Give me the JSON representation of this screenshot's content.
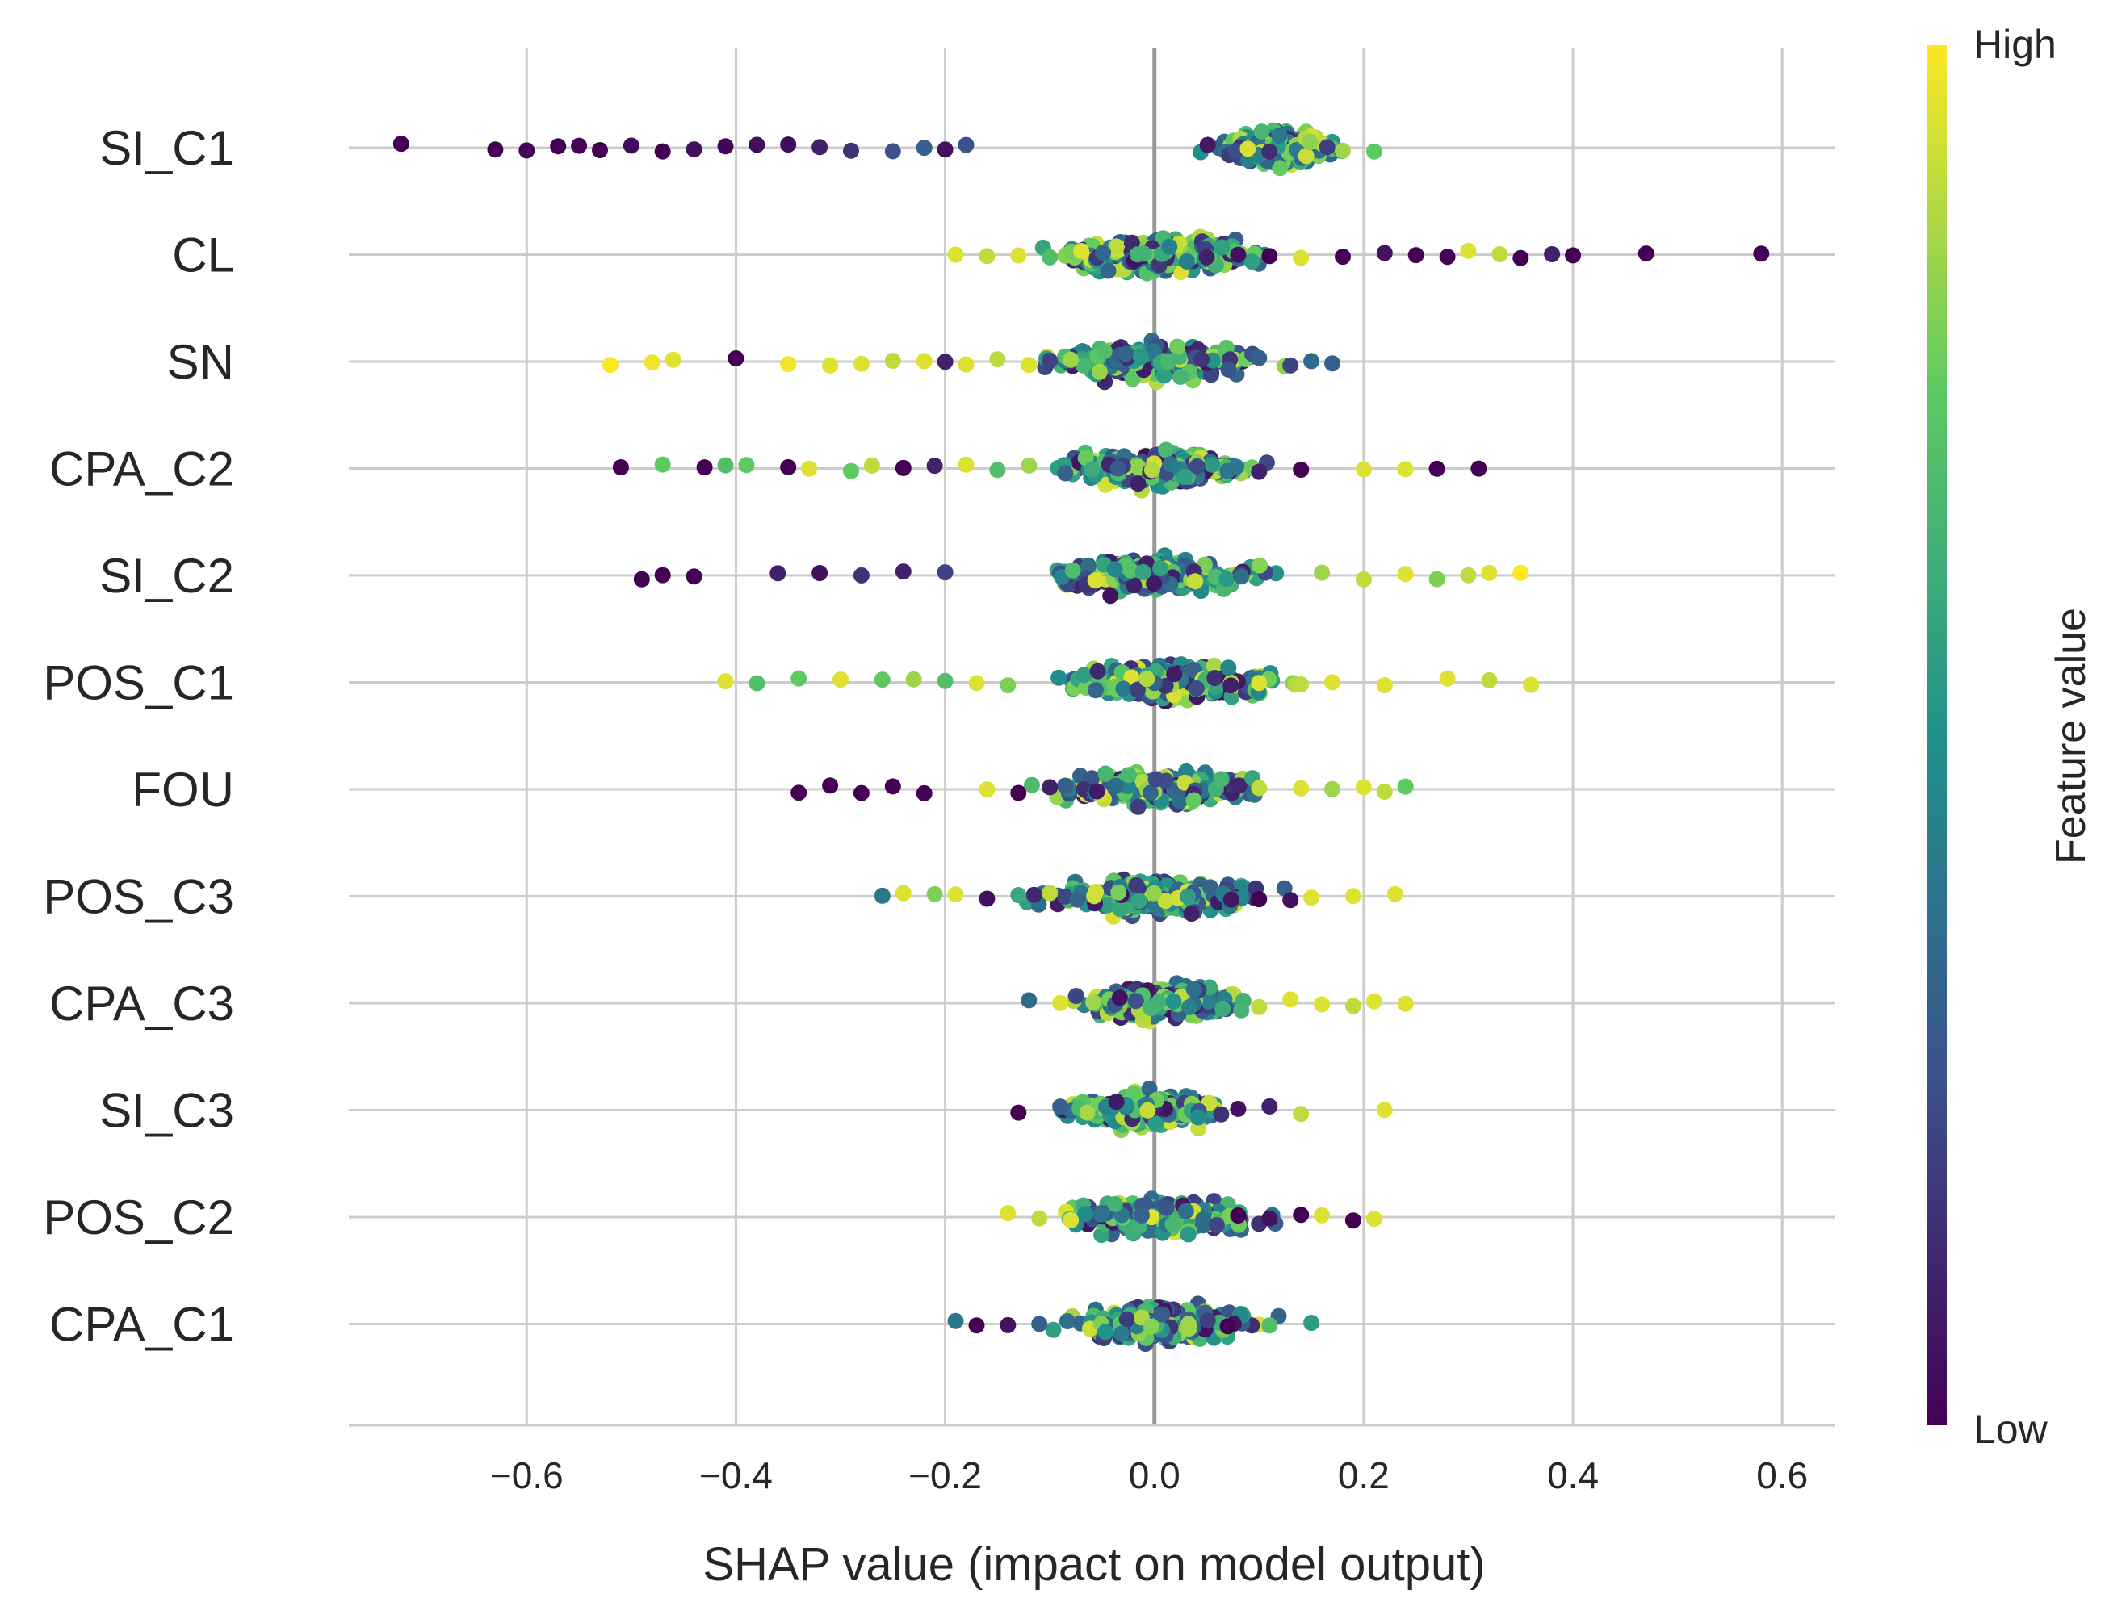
{
  "chart_data": {
    "type": "scatter",
    "subtype": "shap-beeswarm",
    "title": "",
    "xlabel": "SHAP value (impact on model output)",
    "ylabel": "",
    "xlim": [
      -0.77,
      0.65
    ],
    "xticks": [
      -0.6,
      -0.4,
      -0.2,
      0.0,
      0.2,
      0.4,
      0.6
    ],
    "xtick_labels": [
      "−0.6",
      "−0.4",
      "−0.2",
      "0.0",
      "0.2",
      "0.4",
      "0.6"
    ],
    "grid": true,
    "colorbar": {
      "label": "Feature value",
      "high_label": "High",
      "low_label": "Low",
      "colormap": "viridis",
      "colors": [
        "#440154",
        "#3b528b",
        "#21918c",
        "#5ec962",
        "#fde725"
      ]
    },
    "features": [
      {
        "name": "SI_C1",
        "range": [
          -0.72,
          0.21
        ],
        "dense_center": 0.12,
        "points": [
          {
            "x": -0.72,
            "v": 0.0
          },
          {
            "x": -0.63,
            "v": 0.0
          },
          {
            "x": -0.6,
            "v": 0.02
          },
          {
            "x": -0.57,
            "v": 0.0
          },
          {
            "x": -0.55,
            "v": 0.02
          },
          {
            "x": -0.53,
            "v": 0.0
          },
          {
            "x": -0.5,
            "v": 0.03
          },
          {
            "x": -0.47,
            "v": 0.0
          },
          {
            "x": -0.44,
            "v": 0.05
          },
          {
            "x": -0.41,
            "v": 0.02
          },
          {
            "x": -0.38,
            "v": 0.04
          },
          {
            "x": -0.35,
            "v": 0.03
          },
          {
            "x": -0.32,
            "v": 0.1
          },
          {
            "x": -0.29,
            "v": 0.15
          },
          {
            "x": -0.25,
            "v": 0.25
          },
          {
            "x": -0.22,
            "v": 0.3
          },
          {
            "x": -0.2,
            "v": 0.05
          },
          {
            "x": -0.18,
            "v": 0.25
          },
          {
            "x": 0.18,
            "v": 0.85
          },
          {
            "x": 0.21,
            "v": 0.75
          }
        ]
      },
      {
        "name": "CL",
        "range": [
          -0.19,
          0.58
        ],
        "dense_center": 0.0,
        "points": [
          {
            "x": -0.19,
            "v": 0.95
          },
          {
            "x": -0.16,
            "v": 0.9
          },
          {
            "x": -0.13,
            "v": 0.95
          },
          {
            "x": -0.1,
            "v": 0.7
          },
          {
            "x": -0.07,
            "v": 0.95
          },
          {
            "x": 0.05,
            "v": 0.1
          },
          {
            "x": 0.08,
            "v": 0.05
          },
          {
            "x": 0.11,
            "v": 0.0
          },
          {
            "x": 0.14,
            "v": 0.95
          },
          {
            "x": 0.18,
            "v": 0.0
          },
          {
            "x": 0.22,
            "v": 0.05
          },
          {
            "x": 0.25,
            "v": 0.0
          },
          {
            "x": 0.28,
            "v": 0.0
          },
          {
            "x": 0.3,
            "v": 0.95
          },
          {
            "x": 0.33,
            "v": 0.9
          },
          {
            "x": 0.35,
            "v": 0.0
          },
          {
            "x": 0.38,
            "v": 0.1
          },
          {
            "x": 0.4,
            "v": 0.0
          },
          {
            "x": 0.47,
            "v": 0.0
          },
          {
            "x": 0.58,
            "v": 0.0
          }
        ]
      },
      {
        "name": "SN",
        "range": [
          -0.52,
          0.17
        ],
        "dense_center": 0.0,
        "points": [
          {
            "x": -0.52,
            "v": 1.0
          },
          {
            "x": -0.48,
            "v": 0.98
          },
          {
            "x": -0.46,
            "v": 0.95
          },
          {
            "x": -0.4,
            "v": 0.0
          },
          {
            "x": -0.35,
            "v": 0.98
          },
          {
            "x": -0.31,
            "v": 0.95
          },
          {
            "x": -0.28,
            "v": 0.95
          },
          {
            "x": -0.25,
            "v": 0.9
          },
          {
            "x": -0.22,
            "v": 0.95
          },
          {
            "x": -0.2,
            "v": 0.1
          },
          {
            "x": -0.18,
            "v": 0.95
          },
          {
            "x": -0.15,
            "v": 0.9
          },
          {
            "x": -0.12,
            "v": 0.95
          },
          {
            "x": -0.1,
            "v": 0.2
          },
          {
            "x": -0.08,
            "v": 0.85
          },
          {
            "x": 0.1,
            "v": 0.3
          },
          {
            "x": 0.13,
            "v": 0.2
          },
          {
            "x": 0.15,
            "v": 0.35
          },
          {
            "x": 0.17,
            "v": 0.3
          }
        ]
      },
      {
        "name": "CPA_C2",
        "range": [
          -0.51,
          0.31
        ],
        "dense_center": 0.0,
        "points": [
          {
            "x": -0.51,
            "v": 0.0
          },
          {
            "x": -0.47,
            "v": 0.75
          },
          {
            "x": -0.43,
            "v": 0.0
          },
          {
            "x": -0.41,
            "v": 0.7
          },
          {
            "x": -0.39,
            "v": 0.75
          },
          {
            "x": -0.35,
            "v": 0.0
          },
          {
            "x": -0.33,
            "v": 0.95
          },
          {
            "x": -0.29,
            "v": 0.75
          },
          {
            "x": -0.27,
            "v": 0.9
          },
          {
            "x": -0.24,
            "v": 0.0
          },
          {
            "x": -0.21,
            "v": 0.1
          },
          {
            "x": -0.18,
            "v": 0.95
          },
          {
            "x": -0.15,
            "v": 0.7
          },
          {
            "x": -0.12,
            "v": 0.85
          },
          {
            "x": 0.1,
            "v": 0.1
          },
          {
            "x": 0.14,
            "v": 0.0
          },
          {
            "x": 0.2,
            "v": 0.95
          },
          {
            "x": 0.24,
            "v": 0.95
          },
          {
            "x": 0.27,
            "v": 0.0
          },
          {
            "x": 0.31,
            "v": 0.0
          }
        ]
      },
      {
        "name": "SI_C2",
        "range": [
          -0.49,
          0.35
        ],
        "dense_center": 0.0,
        "points": [
          {
            "x": -0.49,
            "v": 0.0
          },
          {
            "x": -0.47,
            "v": 0.0
          },
          {
            "x": -0.44,
            "v": 0.0
          },
          {
            "x": -0.36,
            "v": 0.1
          },
          {
            "x": -0.32,
            "v": 0.05
          },
          {
            "x": -0.28,
            "v": 0.15
          },
          {
            "x": -0.24,
            "v": 0.1
          },
          {
            "x": -0.2,
            "v": 0.2
          },
          {
            "x": 0.16,
            "v": 0.85
          },
          {
            "x": 0.2,
            "v": 0.9
          },
          {
            "x": 0.24,
            "v": 0.95
          },
          {
            "x": 0.27,
            "v": 0.8
          },
          {
            "x": 0.3,
            "v": 0.9
          },
          {
            "x": 0.32,
            "v": 0.95
          },
          {
            "x": 0.35,
            "v": 1.0
          }
        ]
      },
      {
        "name": "POS_C1",
        "range": [
          -0.41,
          0.36
        ],
        "dense_center": 0.02,
        "points": [
          {
            "x": -0.41,
            "v": 0.95
          },
          {
            "x": -0.38,
            "v": 0.7
          },
          {
            "x": -0.34,
            "v": 0.75
          },
          {
            "x": -0.3,
            "v": 0.95
          },
          {
            "x": -0.26,
            "v": 0.75
          },
          {
            "x": -0.23,
            "v": 0.85
          },
          {
            "x": -0.2,
            "v": 0.7
          },
          {
            "x": -0.17,
            "v": 0.95
          },
          {
            "x": -0.14,
            "v": 0.8
          },
          {
            "x": 0.1,
            "v": 0.95
          },
          {
            "x": 0.14,
            "v": 0.9
          },
          {
            "x": 0.17,
            "v": 0.95
          },
          {
            "x": 0.22,
            "v": 0.95
          },
          {
            "x": 0.28,
            "v": 0.95
          },
          {
            "x": 0.32,
            "v": 0.9
          },
          {
            "x": 0.36,
            "v": 0.95
          }
        ]
      },
      {
        "name": "FOU",
        "range": [
          -0.34,
          0.24
        ],
        "dense_center": 0.0,
        "points": [
          {
            "x": -0.34,
            "v": 0.0
          },
          {
            "x": -0.31,
            "v": 0.0
          },
          {
            "x": -0.28,
            "v": 0.0
          },
          {
            "x": -0.25,
            "v": 0.0
          },
          {
            "x": -0.22,
            "v": 0.0
          },
          {
            "x": -0.16,
            "v": 0.95
          },
          {
            "x": -0.13,
            "v": 0.0
          },
          {
            "x": -0.1,
            "v": 0.1
          },
          {
            "x": 0.1,
            "v": 0.9
          },
          {
            "x": 0.14,
            "v": 0.95
          },
          {
            "x": 0.17,
            "v": 0.85
          },
          {
            "x": 0.2,
            "v": 0.95
          },
          {
            "x": 0.22,
            "v": 0.9
          },
          {
            "x": 0.24,
            "v": 0.75
          }
        ]
      },
      {
        "name": "POS_C3",
        "range": [
          -0.26,
          0.23
        ],
        "dense_center": 0.0,
        "points": [
          {
            "x": -0.26,
            "v": 0.4
          },
          {
            "x": -0.24,
            "v": 0.95
          },
          {
            "x": -0.21,
            "v": 0.8
          },
          {
            "x": -0.19,
            "v": 0.95
          },
          {
            "x": -0.16,
            "v": 0.05
          },
          {
            "x": -0.13,
            "v": 0.6
          },
          {
            "x": -0.1,
            "v": 0.9
          },
          {
            "x": 0.1,
            "v": 0.0
          },
          {
            "x": 0.13,
            "v": 0.05
          },
          {
            "x": 0.15,
            "v": 0.95
          },
          {
            "x": 0.19,
            "v": 0.95
          },
          {
            "x": 0.23,
            "v": 0.95
          }
        ]
      },
      {
        "name": "CPA_C3",
        "range": [
          -0.12,
          0.24
        ],
        "dense_center": 0.01,
        "points": [
          {
            "x": -0.12,
            "v": 0.35
          },
          {
            "x": -0.09,
            "v": 0.95
          },
          {
            "x": 0.1,
            "v": 0.9
          },
          {
            "x": 0.13,
            "v": 0.95
          },
          {
            "x": 0.16,
            "v": 0.95
          },
          {
            "x": 0.19,
            "v": 0.9
          },
          {
            "x": 0.21,
            "v": 0.95
          },
          {
            "x": 0.24,
            "v": 0.95
          }
        ]
      },
      {
        "name": "SI_C3",
        "range": [
          -0.13,
          0.22
        ],
        "dense_center": -0.01,
        "points": [
          {
            "x": -0.13,
            "v": 0.0
          },
          {
            "x": -0.09,
            "v": 0.3
          },
          {
            "x": 0.08,
            "v": 0.05
          },
          {
            "x": 0.11,
            "v": 0.1
          },
          {
            "x": 0.14,
            "v": 0.9
          },
          {
            "x": 0.22,
            "v": 0.95
          }
        ]
      },
      {
        "name": "POS_C2",
        "range": [
          -0.14,
          0.21
        ],
        "dense_center": 0.01,
        "points": [
          {
            "x": -0.14,
            "v": 0.95
          },
          {
            "x": -0.11,
            "v": 0.9
          },
          {
            "x": -0.08,
            "v": 0.95
          },
          {
            "x": 0.08,
            "v": 0.0
          },
          {
            "x": 0.11,
            "v": 0.05
          },
          {
            "x": 0.14,
            "v": 0.0
          },
          {
            "x": 0.16,
            "v": 0.95
          },
          {
            "x": 0.19,
            "v": 0.0
          },
          {
            "x": 0.21,
            "v": 0.95
          }
        ]
      },
      {
        "name": "CPA_C1",
        "range": [
          -0.19,
          0.15
        ],
        "dense_center": 0.01,
        "points": [
          {
            "x": -0.19,
            "v": 0.4
          },
          {
            "x": -0.17,
            "v": 0.0
          },
          {
            "x": -0.14,
            "v": 0.05
          },
          {
            "x": -0.11,
            "v": 0.3
          },
          {
            "x": 0.07,
            "v": 0.0
          },
          {
            "x": 0.11,
            "v": 0.7
          },
          {
            "x": 0.15,
            "v": 0.55
          }
        ]
      }
    ]
  }
}
